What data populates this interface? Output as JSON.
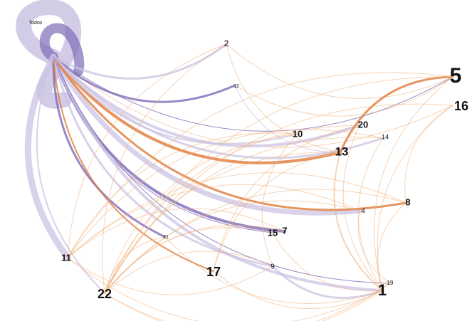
{
  "colors": {
    "purple": "#7e6bb8",
    "lavender": "#cbc3e3",
    "orange": "#e07a3a",
    "peach": "#f0b07a",
    "label": "#111111"
  },
  "nodes": [
    {
      "id": "Todos",
      "label": "Todos"
    },
    {
      "id": "2",
      "label": "2"
    },
    {
      "id": "5",
      "label": "5"
    },
    {
      "id": "16",
      "label": "16"
    },
    {
      "id": "12",
      "label": "12"
    },
    {
      "id": "20",
      "label": "20"
    },
    {
      "id": "14",
      "label": "14"
    },
    {
      "id": "10",
      "label": "10"
    },
    {
      "id": "13",
      "label": "13"
    },
    {
      "id": "8",
      "label": "8"
    },
    {
      "id": "4",
      "label": "4"
    },
    {
      "id": "7",
      "label": "7"
    },
    {
      "id": "15",
      "label": "15"
    },
    {
      "id": "21",
      "label": "21"
    },
    {
      "id": "11",
      "label": "11"
    },
    {
      "id": "9",
      "label": "9"
    },
    {
      "id": "17",
      "label": "17"
    },
    {
      "id": "22",
      "label": "22"
    },
    {
      "id": "19",
      "label": "19"
    },
    {
      "id": "1",
      "label": "1"
    }
  ],
  "edges": [
    {
      "from": "Todos",
      "to": "11",
      "tone": "lavender",
      "weight": 9
    },
    {
      "from": "Todos",
      "to": "4",
      "tone": "lavender",
      "weight": 7
    },
    {
      "from": "Todos",
      "to": "13",
      "tone": "orange",
      "weight": 4
    },
    {
      "from": "Todos",
      "to": "5",
      "tone": "purple",
      "weight": 1
    },
    {
      "from": "Todos",
      "to": "16",
      "tone": "peach",
      "weight": 1
    },
    {
      "from": "Todos",
      "to": "2",
      "tone": "lavender",
      "weight": 3
    },
    {
      "from": "Todos",
      "to": "12",
      "tone": "purple",
      "weight": 3
    },
    {
      "from": "Todos",
      "to": "20",
      "tone": "lavender",
      "weight": 4
    },
    {
      "from": "Todos",
      "to": "14",
      "tone": "lavender",
      "weight": 3
    },
    {
      "from": "Todos",
      "to": "10",
      "tone": "lavender",
      "weight": 2
    },
    {
      "from": "Todos",
      "to": "8",
      "tone": "orange",
      "weight": 3
    },
    {
      "from": "Todos",
      "to": "7",
      "tone": "purple",
      "weight": 4
    },
    {
      "from": "Todos",
      "to": "15",
      "tone": "purple",
      "weight": 1
    },
    {
      "from": "Todos",
      "to": "21",
      "tone": "purple",
      "weight": 3
    },
    {
      "from": "Todos",
      "to": "9",
      "tone": "lavender",
      "weight": 3
    },
    {
      "from": "Todos",
      "to": "17",
      "tone": "orange",
      "weight": 2
    },
    {
      "from": "Todos",
      "to": "22",
      "tone": "lavender",
      "weight": 2
    },
    {
      "from": "Todos",
      "to": "1",
      "tone": "lavender",
      "weight": 4
    },
    {
      "from": "Todos",
      "to": "19",
      "tone": "purple",
      "weight": 1
    },
    {
      "from": "2",
      "to": "5",
      "tone": "peach",
      "weight": 1
    },
    {
      "from": "2",
      "to": "13",
      "tone": "peach",
      "weight": 1
    },
    {
      "from": "2",
      "to": "22",
      "tone": "peach",
      "weight": 1
    },
    {
      "from": "12",
      "to": "13",
      "tone": "lavender",
      "weight": 1
    },
    {
      "from": "5",
      "to": "13",
      "tone": "orange",
      "weight": 3
    },
    {
      "from": "5",
      "to": "22",
      "tone": "peach",
      "weight": 1
    },
    {
      "from": "5",
      "to": "11",
      "tone": "peach",
      "weight": 1
    },
    {
      "from": "5",
      "to": "1",
      "tone": "peach",
      "weight": 1
    },
    {
      "from": "16",
      "to": "8",
      "tone": "peach",
      "weight": 1
    },
    {
      "from": "16",
      "to": "1",
      "tone": "peach",
      "weight": 1
    },
    {
      "from": "16",
      "to": "22",
      "tone": "peach",
      "weight": 1
    },
    {
      "from": "20",
      "to": "22",
      "tone": "peach",
      "weight": 1
    },
    {
      "from": "20",
      "to": "17",
      "tone": "peach",
      "weight": 1
    },
    {
      "from": "14",
      "to": "11",
      "tone": "peach",
      "weight": 1
    },
    {
      "from": "14",
      "to": "1",
      "tone": "peach",
      "weight": 1
    },
    {
      "from": "10",
      "to": "22",
      "tone": "peach",
      "weight": 1
    },
    {
      "from": "10",
      "to": "9",
      "tone": "peach",
      "weight": 1
    },
    {
      "from": "13",
      "to": "1",
      "tone": "peach",
      "weight": 2
    },
    {
      "from": "13",
      "to": "22",
      "tone": "peach",
      "weight": 1
    },
    {
      "from": "13",
      "to": "17",
      "tone": "peach",
      "weight": 1
    },
    {
      "from": "8",
      "to": "22",
      "tone": "peach",
      "weight": 1
    },
    {
      "from": "8",
      "to": "11",
      "tone": "peach",
      "weight": 1
    },
    {
      "from": "8",
      "to": "1",
      "tone": "peach",
      "weight": 1
    },
    {
      "from": "4",
      "to": "22",
      "tone": "peach",
      "weight": 1
    },
    {
      "from": "4",
      "to": "19",
      "tone": "peach",
      "weight": 1
    },
    {
      "from": "4",
      "to": "11",
      "tone": "peach",
      "weight": 1
    },
    {
      "from": "7",
      "to": "22",
      "tone": "peach",
      "weight": 1
    },
    {
      "from": "7",
      "to": "11",
      "tone": "peach",
      "weight": 1
    },
    {
      "from": "15",
      "to": "22",
      "tone": "peach",
      "weight": 1
    },
    {
      "from": "15",
      "to": "1",
      "tone": "peach",
      "weight": 1
    },
    {
      "from": "9",
      "to": "22",
      "tone": "peach",
      "weight": 1
    },
    {
      "from": "9",
      "to": "1",
      "tone": "lavender",
      "weight": 3
    },
    {
      "from": "21",
      "to": "22",
      "tone": "peach",
      "weight": 1
    },
    {
      "from": "21",
      "to": "1",
      "tone": "peach",
      "weight": 1
    },
    {
      "from": "11",
      "to": "1",
      "tone": "peach",
      "weight": 1
    },
    {
      "from": "11",
      "to": "9",
      "tone": "peach",
      "weight": 1
    },
    {
      "from": "17",
      "to": "1",
      "tone": "peach",
      "weight": 1
    },
    {
      "from": "22",
      "to": "1",
      "tone": "peach",
      "weight": 1
    },
    {
      "from": "22",
      "to": "19",
      "tone": "peach",
      "weight": 1
    },
    {
      "from": "19",
      "to": "1",
      "tone": "peach",
      "weight": 1
    },
    {
      "from": "12",
      "to": "5",
      "tone": "peach",
      "weight": 1
    },
    {
      "from": "20",
      "to": "1",
      "tone": "peach",
      "weight": 1
    },
    {
      "from": "14",
      "to": "22",
      "tone": "peach",
      "weight": 1
    },
    {
      "from": "10",
      "to": "11",
      "tone": "peach",
      "weight": 1
    },
    {
      "from": "2",
      "to": "11",
      "tone": "peach",
      "weight": 1
    }
  ]
}
